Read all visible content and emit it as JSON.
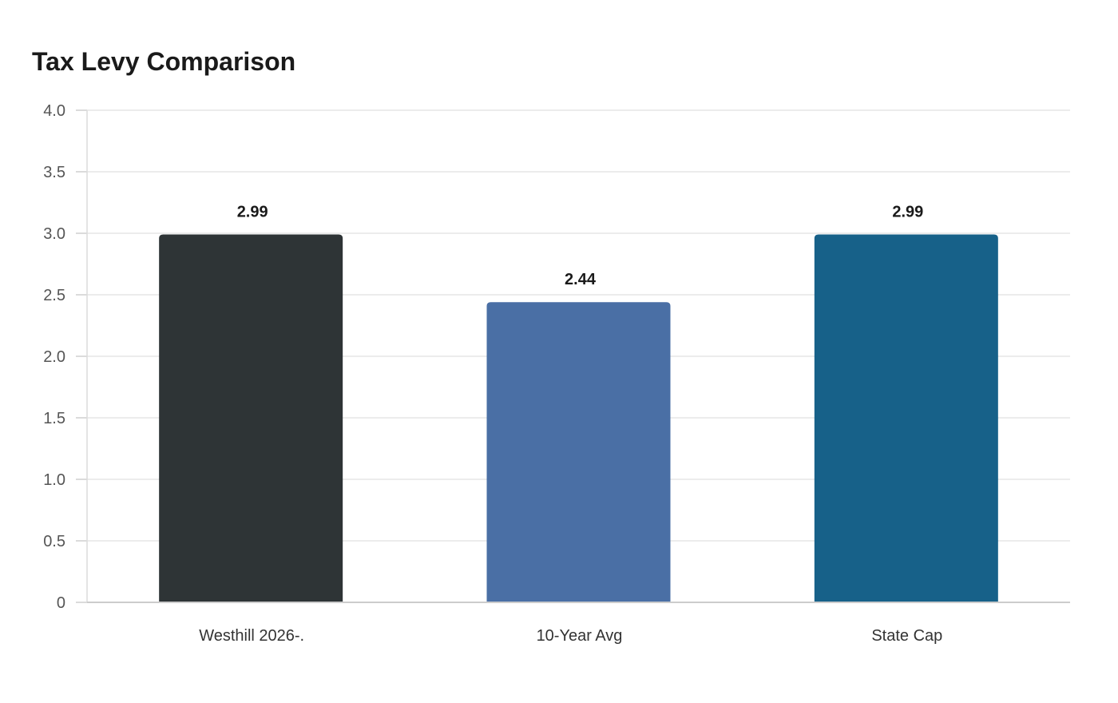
{
  "chart_data": {
    "type": "bar",
    "title": "Tax Levy Comparison",
    "categories": [
      "Westhill 2026-.",
      "10-Year Avg",
      "State Cap"
    ],
    "values": [
      2.99,
      2.44,
      2.99
    ],
    "data_labels": [
      "2.99",
      "2.44",
      "2.99"
    ],
    "colors": [
      "#2e3436",
      "#4a6fa5",
      "#176189"
    ],
    "ylim": [
      0,
      4.0
    ],
    "yticks": [
      0,
      0.5,
      1.0,
      1.5,
      2.0,
      2.5,
      3.0,
      3.5,
      4.0
    ],
    "ytick_labels": [
      "0",
      "0.5",
      "1.0",
      "1.5",
      "2.0",
      "2.5",
      "3.0",
      "3.5",
      "4.0"
    ],
    "xlabel": "",
    "ylabel": "",
    "grid": true,
    "legend": "none"
  }
}
